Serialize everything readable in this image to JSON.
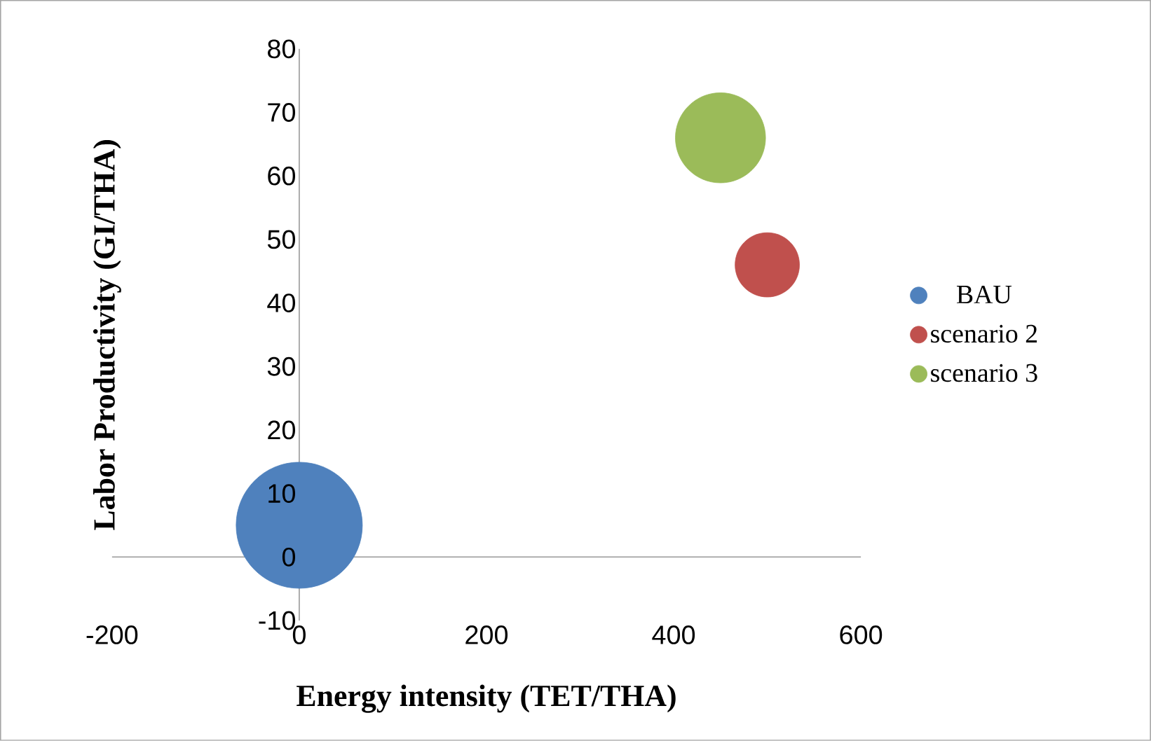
{
  "chart_data": {
    "type": "bubble",
    "xlabel": "Energy intensity (TET/THA)",
    "ylabel": "Labor Productivity (GI/THA)",
    "series": [
      {
        "name": "BAU",
        "color": "#4f81bd",
        "x": [
          0
        ],
        "values": [
          5
        ],
        "sizes": [
          1
        ]
      },
      {
        "name": "scenario 2",
        "color": "#c0504d",
        "x": [
          500
        ],
        "values": [
          46
        ],
        "sizes": [
          0.26
        ]
      },
      {
        "name": "scenario 3",
        "color": "#9bbb59",
        "x": [
          450
        ],
        "values": [
          66
        ],
        "sizes": [
          0.51
        ]
      }
    ],
    "xlim": [
      -200,
      600
    ],
    "ylim": [
      -10,
      80
    ],
    "xticks": [
      -200,
      0,
      200,
      400,
      600
    ],
    "yticks": [
      -10,
      0,
      10,
      20,
      30,
      40,
      50,
      60,
      70,
      80
    ],
    "legend": "right",
    "grid": false
  }
}
